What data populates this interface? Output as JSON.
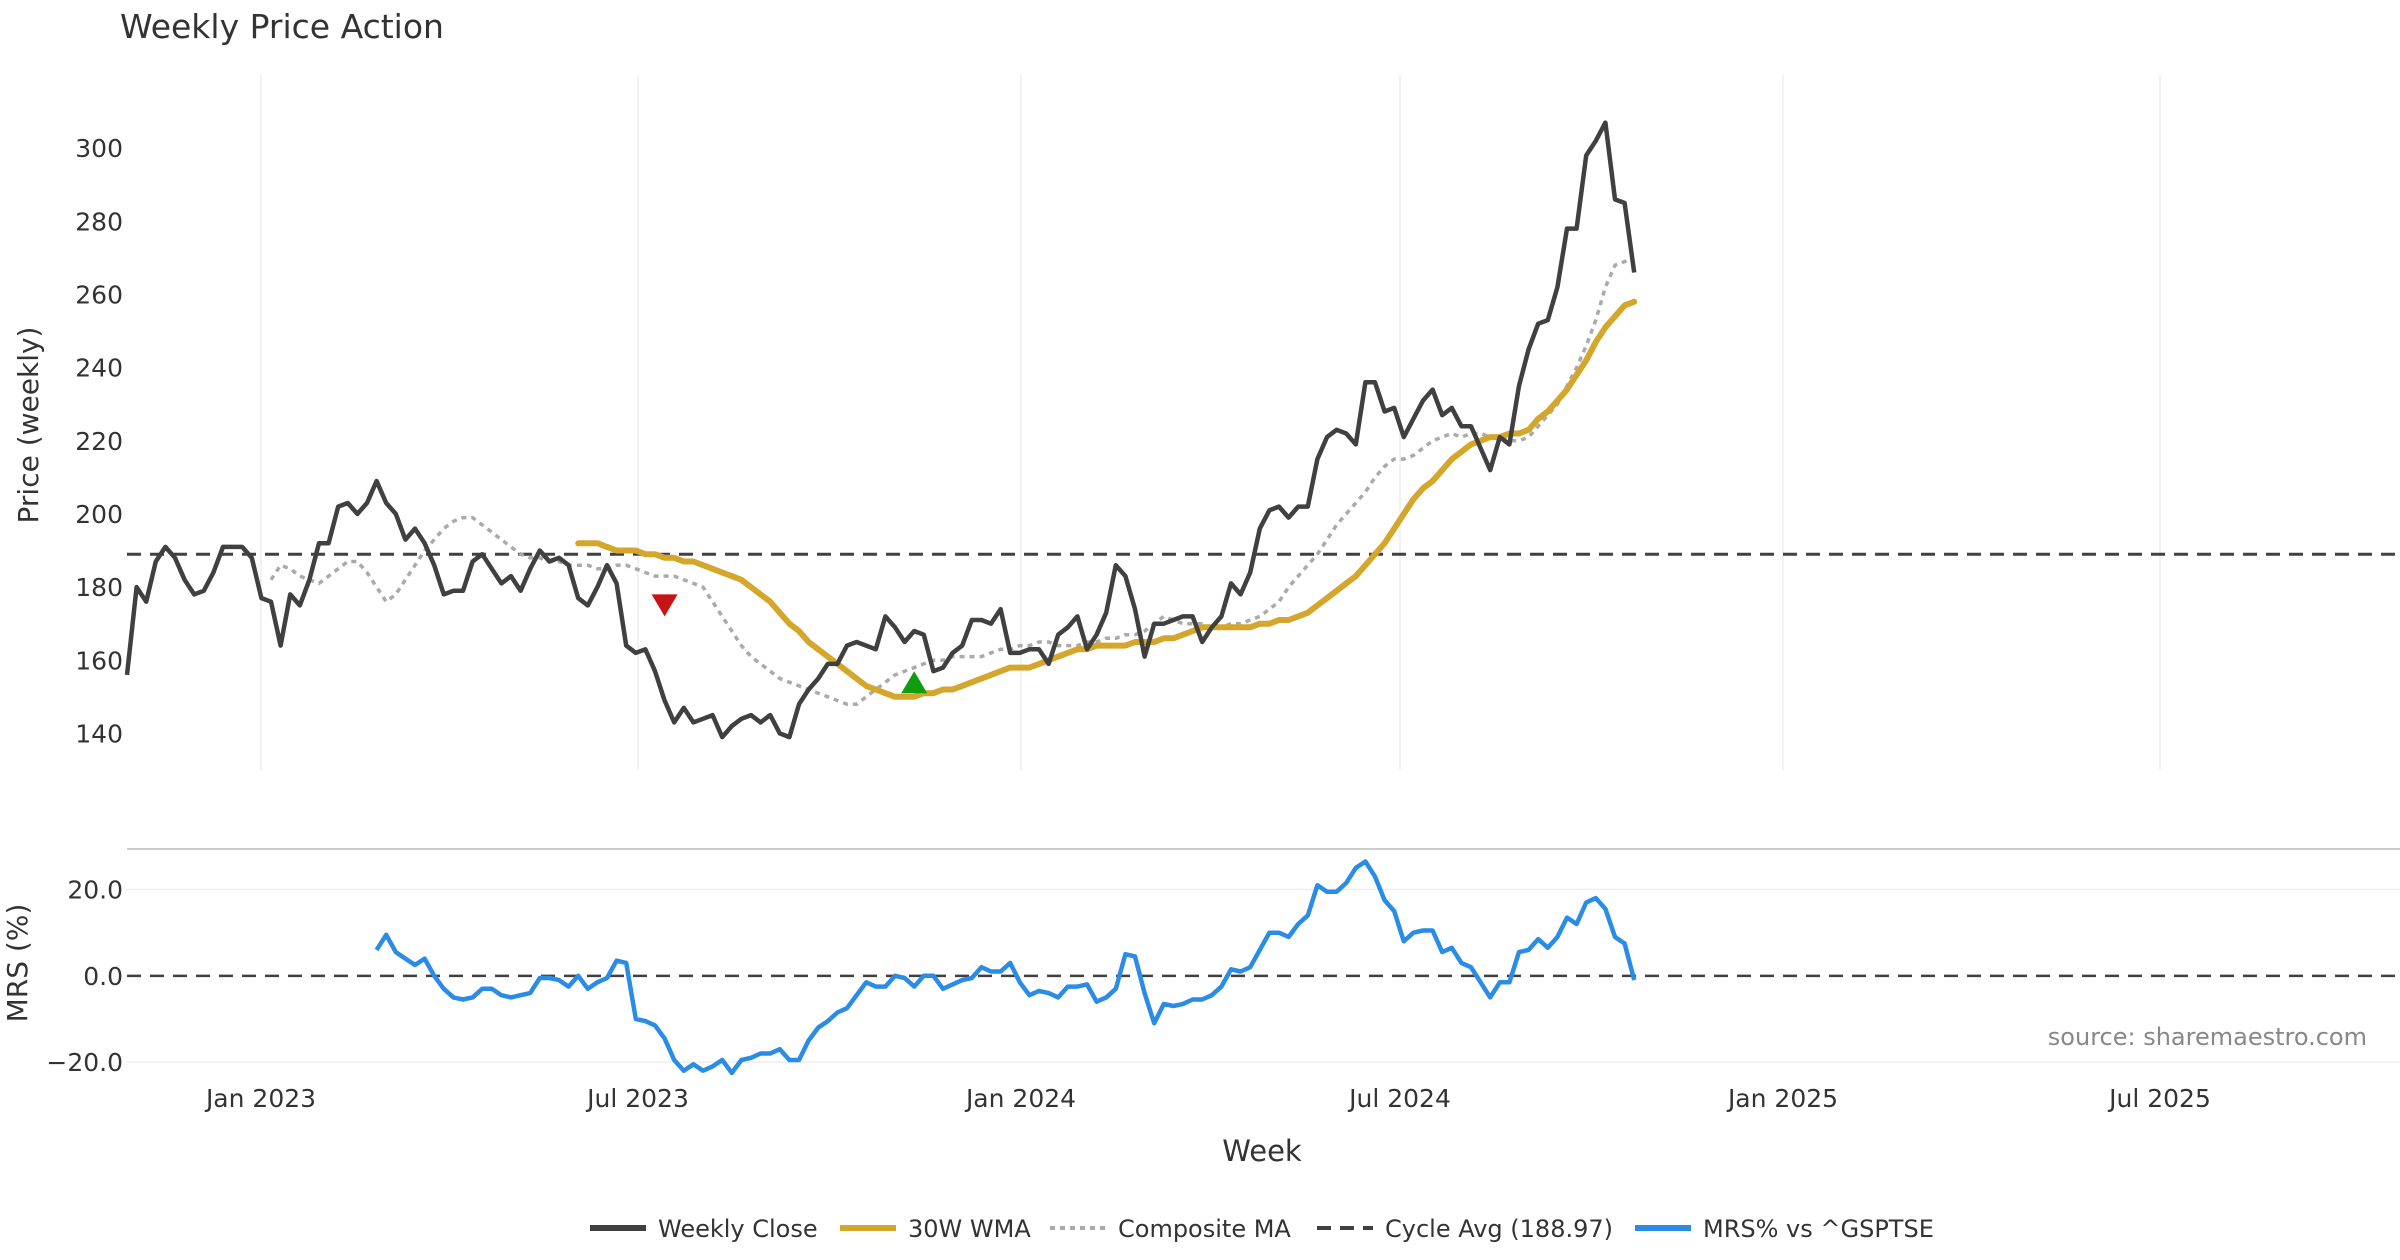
{
  "chart_data": {
    "type": "line",
    "title": "Weekly Price Action",
    "xlabel": "Week",
    "source": "source: sharemaestro.com",
    "x_ticks": [
      "Jan 2023",
      "Jul 2023",
      "Jan 2024",
      "Jul 2024",
      "Jan 2025",
      "Jul 2025"
    ],
    "price_panel": {
      "ylabel": "Price (weekly)",
      "ylim": [
        130,
        320
      ],
      "y_ticks": [
        "140",
        "160",
        "180",
        "200",
        "220",
        "240",
        "260",
        "280",
        "300"
      ],
      "cycle_avg": 188.97,
      "weekly_close": [
        156,
        180,
        176,
        187,
        191,
        188,
        182,
        178,
        179,
        184,
        191,
        191,
        191,
        188,
        177,
        176,
        164,
        178,
        175,
        182,
        192,
        192,
        202,
        203,
        200,
        203,
        209,
        203,
        200,
        193,
        196,
        192,
        186,
        178,
        179,
        179,
        187,
        189,
        185,
        181,
        183,
        179,
        185,
        190,
        187,
        188,
        186,
        177,
        175,
        180,
        186,
        181,
        164,
        162,
        163,
        157,
        149,
        143,
        147,
        143,
        144,
        145,
        139,
        142,
        144,
        145,
        143,
        145,
        140,
        139,
        148,
        152,
        155,
        159,
        159,
        164,
        165,
        164,
        163,
        172,
        169,
        165,
        168,
        167,
        157,
        158,
        162,
        164,
        171,
        171,
        170,
        174,
        162,
        162,
        163,
        163,
        159,
        167,
        169,
        172,
        163,
        167,
        173,
        186,
        183,
        174,
        161,
        170,
        170,
        171,
        172,
        172,
        165,
        169,
        172,
        181,
        178,
        184,
        196,
        201,
        202,
        199,
        202,
        202,
        215,
        221,
        223,
        222,
        219,
        236,
        236,
        228,
        229,
        221,
        226,
        231,
        234,
        227,
        229,
        224,
        224,
        218,
        212,
        221,
        219,
        235,
        245,
        252,
        253,
        262,
        278,
        278,
        298,
        302,
        307,
        286,
        285,
        266
      ],
      "wma_30w": [
        192,
        192,
        192,
        191,
        190,
        190,
        190,
        189,
        189,
        188,
        188,
        187,
        187,
        186,
        185,
        184,
        183,
        182,
        180,
        178,
        176,
        173,
        170,
        168,
        165,
        163,
        161,
        159,
        157,
        155,
        153,
        152,
        151,
        150,
        150,
        150,
        151,
        151,
        152,
        152,
        153,
        154,
        155,
        156,
        157,
        158,
        158,
        158,
        159,
        160,
        161,
        162,
        163,
        163,
        164,
        164,
        164,
        164,
        165,
        165,
        165,
        166,
        166,
        167,
        168,
        169,
        169,
        169,
        169,
        169,
        169,
        170,
        170,
        171,
        171,
        172,
        173,
        175,
        177,
        179,
        181,
        183,
        186,
        189,
        192,
        196,
        200,
        204,
        207,
        209,
        212,
        215,
        217,
        219,
        220,
        221,
        221,
        222,
        222,
        223,
        226,
        228,
        231,
        234,
        238,
        242,
        247,
        251,
        254,
        257,
        258
      ],
      "composite_ma": [
        182,
        186,
        185,
        183,
        182,
        181,
        183,
        185,
        187,
        187,
        184,
        180,
        176,
        178,
        182,
        186,
        190,
        193,
        196,
        198,
        199,
        199,
        197,
        195,
        193,
        191,
        189,
        188,
        188,
        187,
        187,
        186,
        186,
        186,
        185,
        185,
        186,
        186,
        185,
        184,
        183,
        183,
        183,
        182,
        181,
        180,
        176,
        172,
        168,
        164,
        161,
        159,
        157,
        155,
        154,
        153,
        152,
        151,
        150,
        149,
        148,
        148,
        150,
        152,
        154,
        156,
        157,
        158,
        159,
        160,
        160,
        161,
        161,
        161,
        161,
        162,
        163,
        163,
        164,
        164,
        165,
        165,
        164,
        164,
        164,
        165,
        165,
        166,
        166,
        167,
        167,
        168,
        170,
        172,
        171,
        170,
        170,
        170,
        169,
        169,
        170,
        170,
        171,
        172,
        174,
        176,
        180,
        183,
        186,
        189,
        193,
        197,
        200,
        203,
        206,
        210,
        213,
        215,
        215,
        216,
        218,
        220,
        221,
        222,
        221,
        222,
        222,
        221,
        221,
        220,
        220,
        221,
        224,
        227,
        230,
        235,
        240,
        246,
        253,
        262,
        268,
        269,
        270
      ]
    },
    "mrs_panel": {
      "ylabel": "MRS (%)",
      "ylim": [
        -26,
        28
      ],
      "y_ticks": [
        "20.0",
        "0.0",
        "−20.0"
      ],
      "mrs_pct": [
        6,
        9.5,
        5.5,
        4,
        2.5,
        4,
        0,
        -3,
        -5,
        -5.5,
        -5,
        -3,
        -3,
        -4.5,
        -5,
        -4.5,
        -4,
        -0.5,
        -0.5,
        -1,
        -2.5,
        0,
        -3,
        -1.5,
        -0.5,
        3.5,
        3,
        -10,
        -10.5,
        -11.5,
        -14.5,
        -19.5,
        -22,
        -20.5,
        -22,
        -21,
        -19.5,
        -22.5,
        -19.5,
        -19,
        -18,
        -18,
        -17,
        -19.5,
        -19.5,
        -15,
        -12,
        -10.5,
        -8.5,
        -7.5,
        -4.5,
        -1.5,
        -2.5,
        -2.5,
        0,
        -0.5,
        -2.5,
        0,
        0,
        -3,
        -2,
        -1,
        -0.5,
        2,
        1,
        1,
        3,
        -1.5,
        -4.5,
        -3.5,
        -4,
        -5,
        -2.5,
        -2.5,
        -2,
        -6,
        -5,
        -3,
        5,
        4.5,
        -4,
        -11,
        -6.5,
        -7,
        -6.5,
        -5.5,
        -5.5,
        -4.5,
        -2.5,
        1.5,
        1,
        2,
        6,
        10,
        10,
        9,
        12,
        14,
        21,
        19.5,
        19.5,
        21.5,
        25,
        26.5,
        23,
        17.5,
        15,
        8,
        10,
        10.5,
        10.5,
        5.5,
        6.5,
        3,
        2,
        -1.5,
        -5,
        -1.5,
        -1.5,
        5.5,
        6,
        8.5,
        6.5,
        9,
        13.5,
        12,
        17,
        18,
        15.5,
        9,
        7.5,
        -1
      ]
    },
    "signals": [
      {
        "type": "sell",
        "color": "#c81414",
        "week_index": 56,
        "price": 175
      },
      {
        "type": "buy",
        "color": "#109c10",
        "week_index": 82,
        "price": 154
      }
    ],
    "legend": [
      {
        "label": "Weekly Close",
        "color": "#404040",
        "style": "solid"
      },
      {
        "label": "30W WMA",
        "color": "#d4a72c",
        "style": "solid"
      },
      {
        "label": "Composite MA",
        "color": "#aaaaaa",
        "style": "dotted"
      },
      {
        "label": "Cycle Avg (188.97)",
        "color": "#404040",
        "style": "dashed"
      },
      {
        "label": "MRS% vs ^GSPTSE",
        "color": "#2b8ce6",
        "style": "solid"
      }
    ],
    "colors": {
      "close": "#404040",
      "wma": "#d4a72c",
      "composite": "#aaaaaa",
      "mrs": "#2b8ce6",
      "cycle": "#404040"
    }
  }
}
